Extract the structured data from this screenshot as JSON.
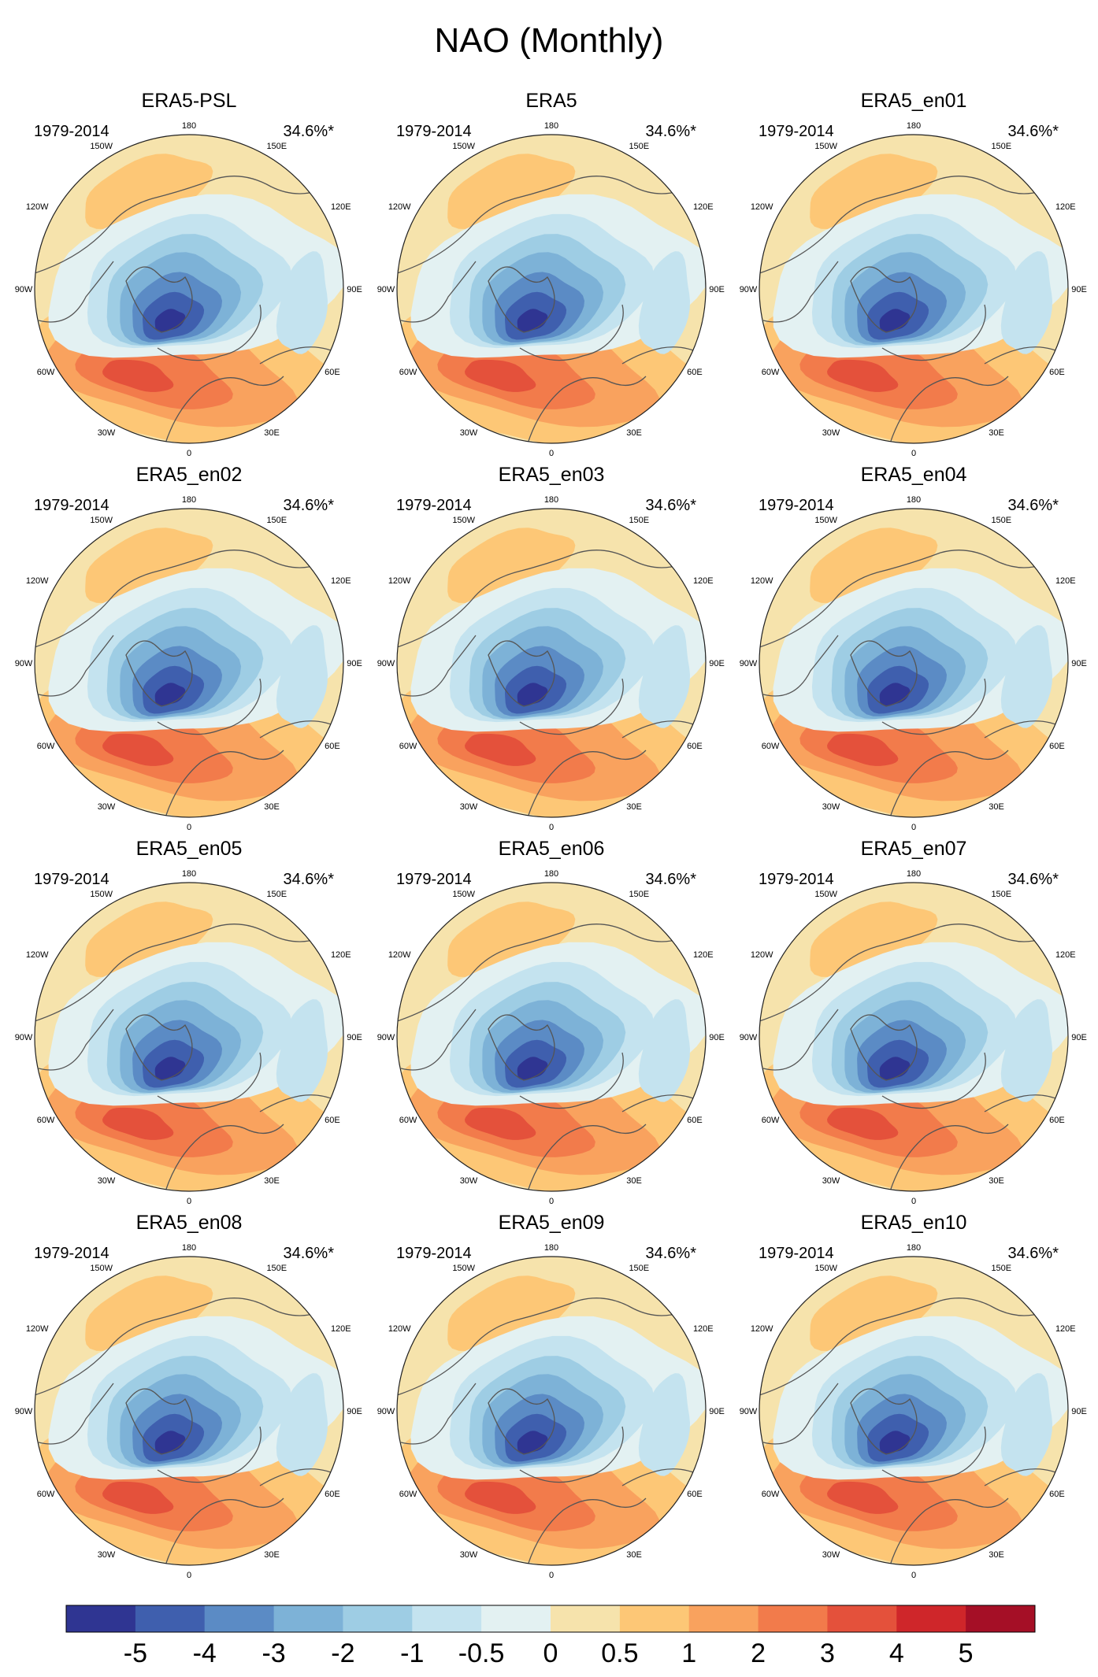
{
  "figure": {
    "title": "NAO (Monthly)"
  },
  "chart_data": {
    "type": "polar-contour-map-grid",
    "title": "NAO (Monthly)",
    "projection": "north-polar-stereographic",
    "period": "1979-2014",
    "variance_explained": "34.6%*",
    "longitude_labels": [
      "180",
      "150E",
      "120E",
      "90E",
      "60E",
      "30E",
      "0",
      "30W",
      "60W",
      "90W",
      "120W",
      "150W"
    ],
    "panels": [
      {
        "name": "ERA5-PSL",
        "period": "1979-2014",
        "pct": "34.6%*"
      },
      {
        "name": "ERA5",
        "period": "1979-2014",
        "pct": "34.6%*"
      },
      {
        "name": "ERA5_en01",
        "period": "1979-2014",
        "pct": "34.6%*"
      },
      {
        "name": "ERA5_en02",
        "period": "1979-2014",
        "pct": "34.6%*"
      },
      {
        "name": "ERA5_en03",
        "period": "1979-2014",
        "pct": "34.6%*"
      },
      {
        "name": "ERA5_en04",
        "period": "1979-2014",
        "pct": "34.6%*"
      },
      {
        "name": "ERA5_en05",
        "period": "1979-2014",
        "pct": "34.6%*"
      },
      {
        "name": "ERA5_en06",
        "period": "1979-2014",
        "pct": "34.6%*"
      },
      {
        "name": "ERA5_en07",
        "period": "1979-2014",
        "pct": "34.6%*"
      },
      {
        "name": "ERA5_en08",
        "period": "1979-2014",
        "pct": "34.6%*"
      },
      {
        "name": "ERA5_en09",
        "period": "1979-2014",
        "pct": "34.6%*"
      },
      {
        "name": "ERA5_en10",
        "period": "1979-2014",
        "pct": "34.6%*"
      }
    ],
    "colorbar": {
      "levels": [
        -5,
        -4,
        -3,
        -2,
        -1,
        -0.5,
        0,
        0.5,
        1,
        2,
        3,
        4,
        5
      ],
      "tick_labels": [
        "-5",
        "-4",
        "-3",
        "-2",
        "-1",
        "-0.5",
        "0",
        "0.5",
        "1",
        "2",
        "3",
        "4",
        "5"
      ],
      "colors": [
        "#2f3592",
        "#3f5fae",
        "#5b8bc5",
        "#7db2d7",
        "#9ecde4",
        "#c4e3ef",
        "#e3f1f2",
        "#f6e3ac",
        "#fdc776",
        "#f9a25e",
        "#f27b4b",
        "#e4513b",
        "#cf262a",
        "#a50f26"
      ]
    }
  }
}
